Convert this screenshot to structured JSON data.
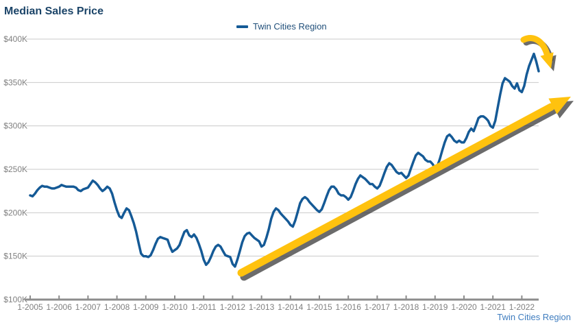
{
  "page": {
    "title": "Median Sales Price"
  },
  "legend": {
    "series_label": "Twin Cities Region"
  },
  "footer": {
    "region_link": "Twin Cities Region"
  },
  "colors": {
    "line": "#155A96",
    "title_text": "#1B4468",
    "legend_text": "#1F4E79",
    "axis_text": "#7F7F7F",
    "gridline": "#C9C9C9",
    "axis_line": "#8C8C8C",
    "arrow": "#FFC20E",
    "arrow_shadow": "#3A3A3A",
    "footer_link": "#3F7DBF"
  },
  "chart_data": {
    "type": "line",
    "title": "Median Sales Price",
    "xlabel": "",
    "ylabel": "",
    "grid": "horizontal",
    "legend_position": "top",
    "ylim_thousands": [
      100,
      400
    ],
    "y_tick_values": [
      400,
      350,
      300,
      250,
      200,
      150,
      100
    ],
    "y_tick_labels": [
      "$400K",
      "$350K",
      "$300K",
      "$250K",
      "$200K",
      "$150K",
      "$100K"
    ],
    "x_tick_labels": [
      "1-2005",
      "1-2006",
      "1-2007",
      "1-2008",
      "1-2009",
      "1-2010",
      "1-2011",
      "1-2012",
      "1-2013",
      "1-2014",
      "1-2015",
      "1-2016",
      "1-2017",
      "1-2018",
      "1-2019",
      "1-2020",
      "1-2021",
      "1-2022"
    ],
    "series": [
      {
        "name": "Twin Cities Region",
        "start": "1-2005",
        "interval": "monthly",
        "values_thousands": [
          220,
          219,
          222,
          226,
          229,
          231,
          230,
          230,
          229,
          228,
          228,
          229,
          230,
          232,
          231,
          230,
          230,
          230,
          230,
          229,
          226,
          225,
          227,
          228,
          229,
          233,
          237,
          235,
          232,
          228,
          225,
          227,
          230,
          228,
          222,
          212,
          203,
          196,
          194,
          200,
          205,
          203,
          196,
          188,
          178,
          165,
          153,
          150,
          150,
          149,
          151,
          157,
          164,
          170,
          172,
          171,
          170,
          169,
          161,
          155,
          157,
          159,
          163,
          171,
          178,
          180,
          174,
          172,
          175,
          171,
          164,
          156,
          146,
          140,
          143,
          149,
          156,
          161,
          163,
          161,
          156,
          151,
          150,
          149,
          141,
          138,
          146,
          156,
          166,
          173,
          176,
          177,
          174,
          171,
          169,
          167,
          161,
          163,
          171,
          181,
          193,
          201,
          205,
          203,
          199,
          196,
          193,
          190,
          186,
          184,
          191,
          201,
          211,
          216,
          218,
          216,
          212,
          209,
          206,
          203,
          201,
          204,
          211,
          219,
          226,
          230,
          230,
          227,
          222,
          220,
          220,
          218,
          215,
          218,
          225,
          233,
          239,
          243,
          241,
          239,
          236,
          233,
          233,
          230,
          228,
          231,
          238,
          246,
          253,
          257,
          255,
          251,
          247,
          245,
          246,
          243,
          240,
          243,
          251,
          259,
          266,
          269,
          267,
          265,
          261,
          259,
          259,
          256,
          251,
          254,
          262,
          272,
          281,
          288,
          290,
          287,
          283,
          281,
          283,
          281,
          281,
          286,
          293,
          297,
          294,
          301,
          309,
          311,
          311,
          309,
          306,
          300,
          298,
          306,
          321,
          336,
          349,
          355,
          353,
          351,
          346,
          343,
          349,
          341,
          339,
          346,
          359,
          369,
          376,
          383,
          374,
          363
        ]
      }
    ],
    "annotations": [
      {
        "name": "upward-trend-arrow",
        "desc": "long gold arrow from early-2012 trough rising to upper right"
      },
      {
        "name": "recent-decline-arrow",
        "desc": "small curved gold arrow pointing down-right above mid-2022 peak"
      }
    ]
  }
}
